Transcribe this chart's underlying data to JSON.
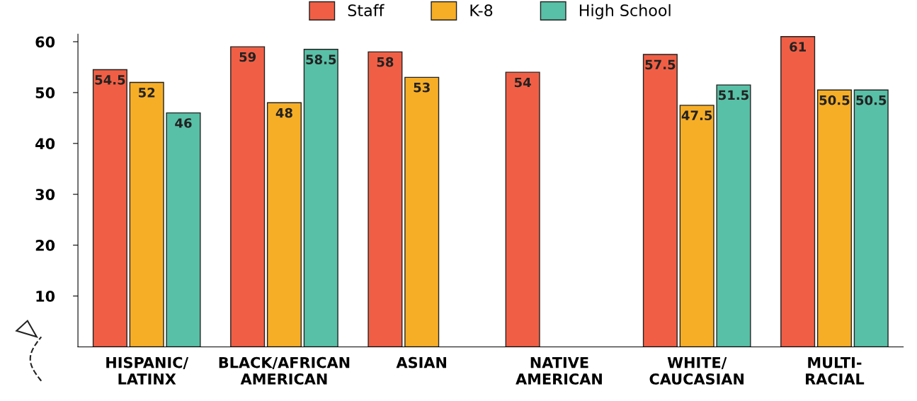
{
  "chart_data": {
    "type": "bar",
    "categories": [
      "HISPANIC/\nLATINX",
      "BLACK/AFRICAN\nAMERICAN",
      "ASIAN",
      "NATIVE\nAMERICAN",
      "WHITE/\nCAUCASIAN",
      "MULTI-\nRACIAL"
    ],
    "series": [
      {
        "name": "Staff",
        "color": "#f05f45",
        "values": [
          54.5,
          59,
          58,
          54,
          57.5,
          61
        ]
      },
      {
        "name": "K-8",
        "color": "#f7ae27",
        "values": [
          52,
          48,
          53,
          null,
          47.5,
          50.5
        ]
      },
      {
        "name": "High School",
        "color": "#58c0a6",
        "values": [
          46,
          58.5,
          null,
          null,
          51.5,
          50.5
        ]
      }
    ],
    "ylim": [
      0,
      61.5
    ],
    "yticks": [
      10,
      20,
      30,
      40,
      50,
      60
    ],
    "data_labels": true,
    "legend": "top",
    "grid": false
  }
}
